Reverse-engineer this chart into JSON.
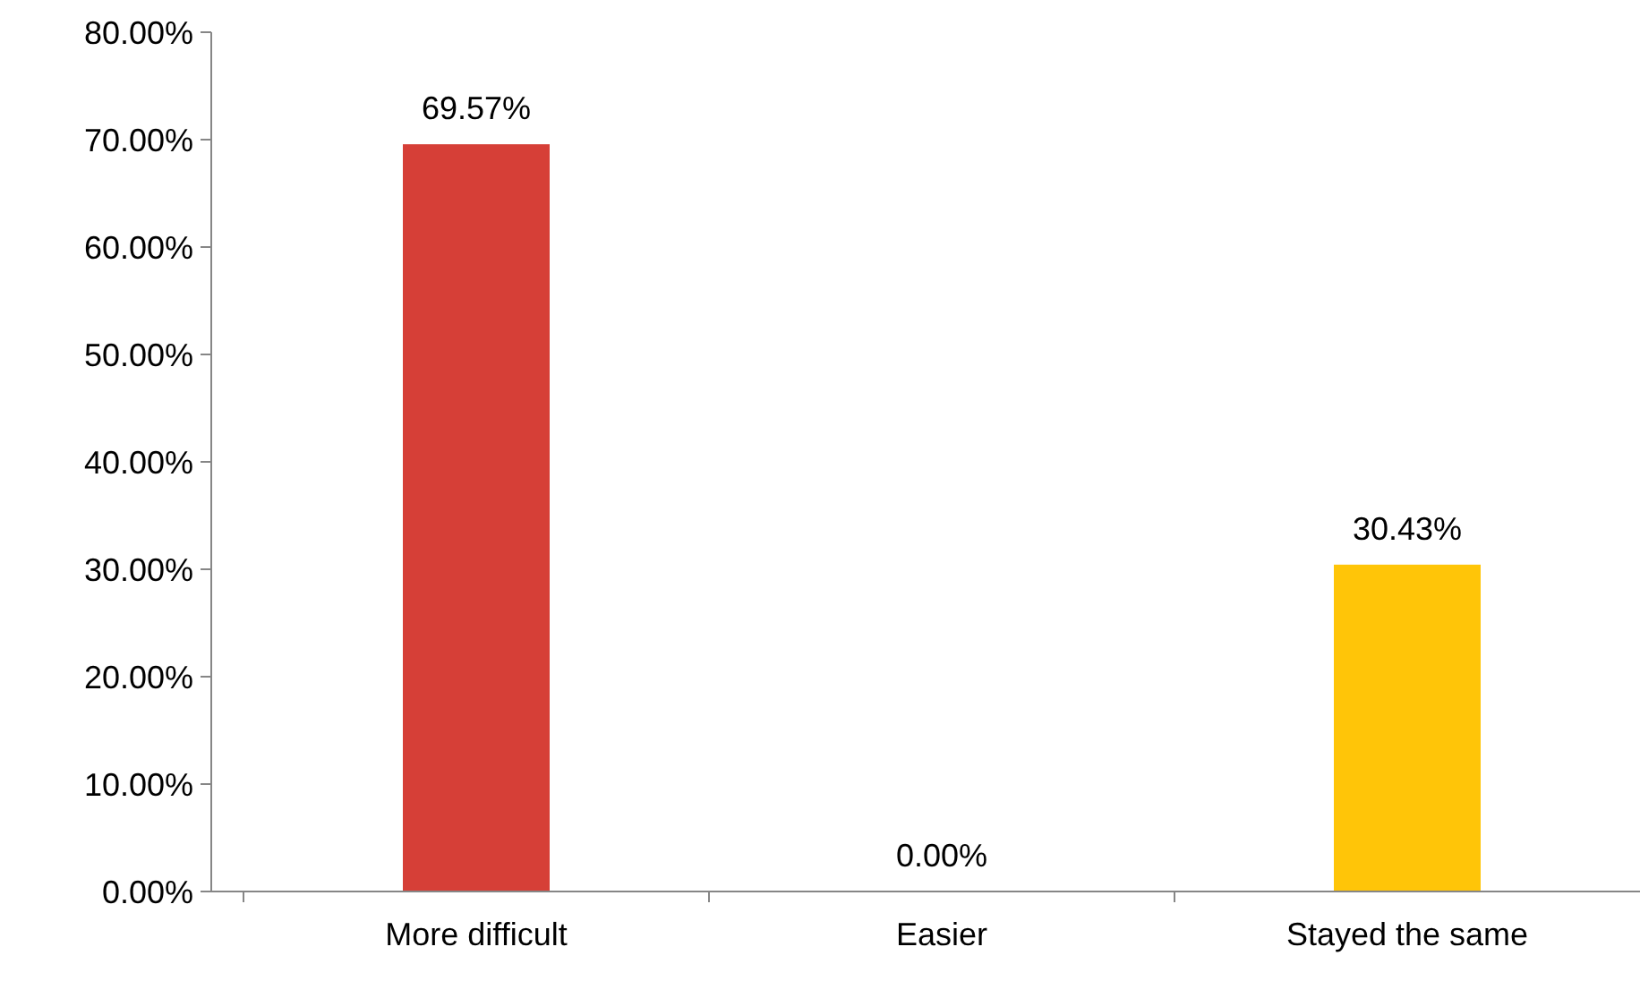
{
  "chart_data": {
    "type": "bar",
    "categories": [
      "More difficult",
      "Easier",
      "Stayed the same"
    ],
    "values": [
      69.57,
      0,
      30.43
    ],
    "colors": [
      "#d63f37",
      "#e0a000",
      "#ffc508"
    ],
    "value_labels": [
      "69.57%",
      "0.00%",
      "30.43%"
    ],
    "ylim": [
      0,
      80
    ],
    "yticks": [
      {
        "value": 0,
        "label": "0.00%"
      },
      {
        "value": 10,
        "label": "10.00%"
      },
      {
        "value": 20,
        "label": "20.00%"
      },
      {
        "value": 30,
        "label": "30.00%"
      },
      {
        "value": 40,
        "label": "40.00%"
      },
      {
        "value": 50,
        "label": "50.00%"
      },
      {
        "value": 60,
        "label": "60.00%"
      },
      {
        "value": 70,
        "label": "70.00%"
      },
      {
        "value": 80,
        "label": "80.00%"
      }
    ]
  }
}
